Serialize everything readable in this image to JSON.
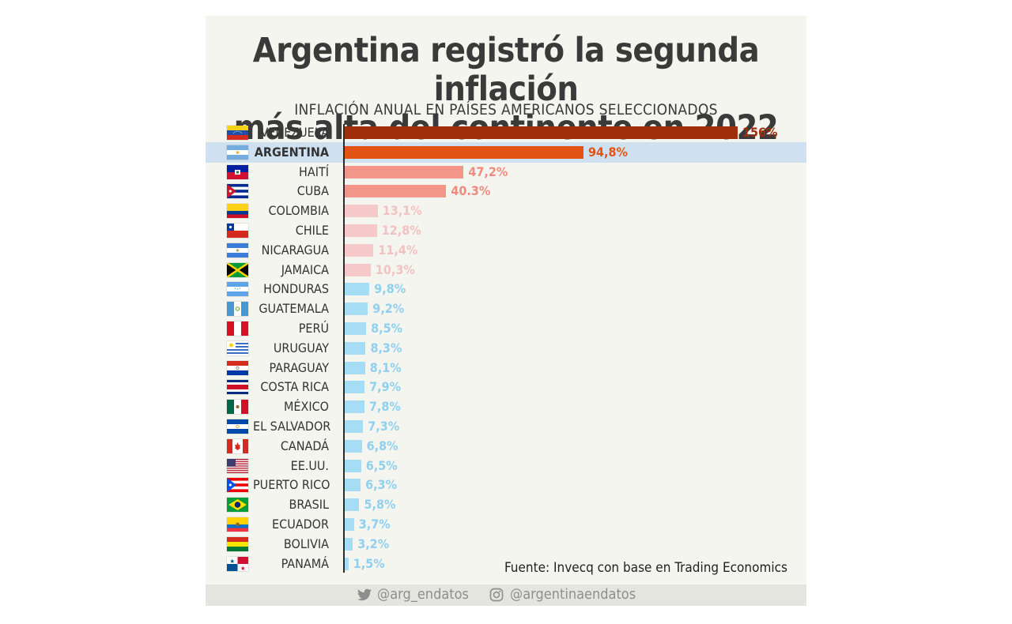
{
  "chart_data": {
    "type": "bar",
    "orientation": "horizontal",
    "title_lines": [
      "Argentina registró la segunda inflación",
      "más alta del continente en 2022"
    ],
    "subtitle": "INFLACIÓN ANUAL EN PAÍSES AMERICANOS SELECCIONADOS",
    "highlighted_category": "ARGENTINA",
    "xlim": [
      0,
      156
    ],
    "grid": false,
    "categories": [
      "VENEZUELA",
      "ARGENTINA",
      "HAITÍ",
      "CUBA",
      "COLOMBIA",
      "CHILE",
      "NICARAGUA",
      "JAMAICA",
      "HONDURAS",
      "GUATEMALA",
      "PERÚ",
      "URUGUAY",
      "PARAGUAY",
      "COSTA RICA",
      "MÉXICO",
      "EL SALVADOR",
      "CANADÁ",
      "EE.UU.",
      "PUERTO RICO",
      "BRASIL",
      "ECUADOR",
      "BOLIVIA",
      "PANAMÁ"
    ],
    "values": [
      156,
      94.8,
      47.2,
      40.3,
      13.1,
      12.8,
      11.4,
      10.3,
      9.8,
      9.2,
      8.5,
      8.3,
      8.1,
      7.9,
      7.8,
      7.3,
      6.8,
      6.5,
      6.3,
      5.8,
      3.7,
      3.2,
      1.5
    ],
    "value_labels": [
      "156%",
      "94,8%",
      "47,2%",
      "40.3%",
      "13,1%",
      "12,8%",
      "11,4%",
      "10,3%",
      "9,8%",
      "9,2%",
      "8,5%",
      "8,3%",
      "8,1%",
      "7,9%",
      "7,8%",
      "7,3%",
      "6,8%",
      "6,5%",
      "6,3%",
      "5,8%",
      "3,7%",
      "3,2%",
      "1,5%"
    ],
    "bar_colors": [
      "#9e2e0c",
      "#e35414",
      "#f4958a",
      "#f4958a",
      "#f5c9c9",
      "#f5c9c9",
      "#f5c9c9",
      "#f5c9c9",
      "#a7dcf5",
      "#a7dcf5",
      "#a7dcf5",
      "#a7dcf5",
      "#a7dcf5",
      "#a7dcf5",
      "#a7dcf5",
      "#a7dcf5",
      "#a7dcf5",
      "#a7dcf5",
      "#a7dcf5",
      "#a7dcf5",
      "#a7dcf5",
      "#a7dcf5",
      "#a7dcf5"
    ],
    "label_colors": [
      "#9e2e0c",
      "#e35414",
      "#f08a80",
      "#f08a80",
      "#f2c2c2",
      "#f2c2c2",
      "#f2c2c2",
      "#f2c2c2",
      "#8fd0f0",
      "#8fd0f0",
      "#8fd0f0",
      "#8fd0f0",
      "#8fd0f0",
      "#8fd0f0",
      "#8fd0f0",
      "#8fd0f0",
      "#8fd0f0",
      "#8fd0f0",
      "#8fd0f0",
      "#8fd0f0",
      "#8fd0f0",
      "#8fd0f0",
      "#8fd0f0"
    ],
    "flag_icons": [
      "venezuela-flag-icon",
      "argentina-flag-icon",
      "haiti-flag-icon",
      "cuba-flag-icon",
      "colombia-flag-icon",
      "chile-flag-icon",
      "nicaragua-flag-icon",
      "jamaica-flag-icon",
      "honduras-flag-icon",
      "guatemala-flag-icon",
      "peru-flag-icon",
      "uruguay-flag-icon",
      "paraguay-flag-icon",
      "costa-rica-flag-icon",
      "mexico-flag-icon",
      "el-salvador-flag-icon",
      "canada-flag-icon",
      "usa-flag-icon",
      "puerto-rico-flag-icon",
      "brazil-flag-icon",
      "ecuador-flag-icon",
      "bolivia-flag-icon",
      "panama-flag-icon"
    ],
    "highlight_color": "#cfe1f1"
  },
  "source": "Fuente: Invecq con base en Trading Economics",
  "footer": {
    "twitter_icon": "twitter-icon",
    "twitter": "@arg_endatos",
    "instagram_icon": "instagram-icon",
    "instagram": "@argentinaendatos"
  }
}
